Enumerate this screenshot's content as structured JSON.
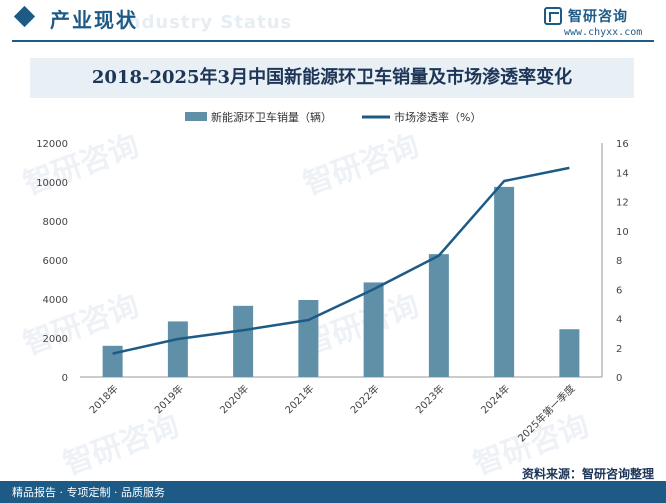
{
  "header": {
    "section_title": "产业现状",
    "section_watermark": "Industry Status",
    "brand_name": "智研咨询",
    "brand_url": "www.chyxx.com"
  },
  "watermark_text": "智研咨询",
  "chart_data": {
    "type": "bar+line",
    "title": "2018-2025年3月中国新能源环卫车销量及市场渗透率变化",
    "categories": [
      "2018年",
      "2019年",
      "2020年",
      "2021年",
      "2022年",
      "2023年",
      "2024年",
      "2025年第一季度"
    ],
    "series": [
      {
        "name": "新能源环卫车销量（辆）",
        "type": "bar",
        "axis": "left",
        "color": "#6090a8",
        "values": [
          1600,
          2850,
          3650,
          3950,
          4850,
          6300,
          9750,
          2450
        ]
      },
      {
        "name": "市场渗透率（%）",
        "type": "line",
        "axis": "right",
        "color": "#1d5b86",
        "values": [
          1.6,
          2.6,
          3.2,
          3.9,
          6.0,
          8.3,
          13.4,
          14.3
        ]
      }
    ],
    "y_left": {
      "min": 0,
      "max": 12000,
      "ticks": [
        0,
        2000,
        4000,
        6000,
        8000,
        10000,
        12000
      ]
    },
    "y_right": {
      "min": 0,
      "max": 16,
      "ticks": [
        0,
        2,
        4,
        6,
        8,
        10,
        12,
        14,
        16
      ]
    },
    "legend_position": "top",
    "grid": false
  },
  "footer": {
    "left_text": "精品报告 · 专项定制 · 品质服务",
    "source_text": "资料来源：智研咨询整理"
  }
}
